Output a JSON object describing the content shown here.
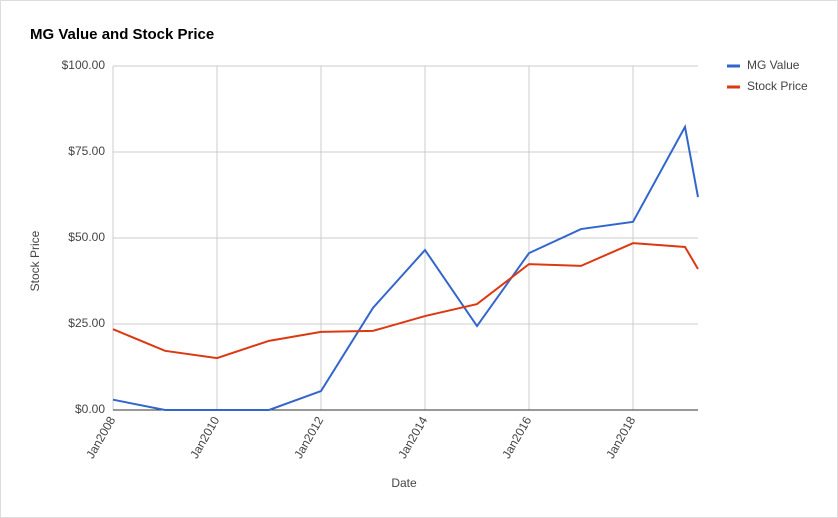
{
  "chart_data": {
    "type": "line",
    "title": "MG Value and Stock Price",
    "x_label": "Date",
    "y_label": "Stock Price",
    "x": [
      2008,
      2009,
      2010,
      2011,
      2012,
      2013,
      2014,
      2015,
      2016,
      2017,
      2018,
      2019,
      2019.25
    ],
    "series": [
      {
        "name": "MG Value",
        "color": "#3366cc",
        "values": [
          3,
          0,
          0,
          0,
          5.5,
          29.7,
          46.5,
          24.4,
          45.6,
          52.6,
          54.7,
          82.3,
          61.9
        ]
      },
      {
        "name": "Stock Price",
        "color": "#dc3912",
        "values": [
          23.5,
          17.2,
          15.1,
          20.1,
          22.7,
          23.0,
          27.3,
          30.8,
          42.4,
          41.9,
          48.5,
          47.4,
          41
        ]
      }
    ],
    "xlim": [
      2008,
      2019.25
    ],
    "xticks": [
      {
        "value": 2008,
        "label": "Jan2008"
      },
      {
        "value": 2010,
        "label": "Jan2010"
      },
      {
        "value": 2012,
        "label": "Jan2012"
      },
      {
        "value": 2014,
        "label": "Jan2014"
      },
      {
        "value": 2016,
        "label": "Jan2016"
      },
      {
        "value": 2018,
        "label": "Jan2018"
      }
    ],
    "ylim": [
      0,
      100
    ],
    "yticks": [
      {
        "value": 0,
        "label": "$0.00"
      },
      {
        "value": 25,
        "label": "$25.00"
      },
      {
        "value": 50,
        "label": "$50.00"
      },
      {
        "value": 75,
        "label": "$75.00"
      },
      {
        "value": 100,
        "label": "$100.00"
      }
    ],
    "grid": true,
    "legend": "right"
  }
}
